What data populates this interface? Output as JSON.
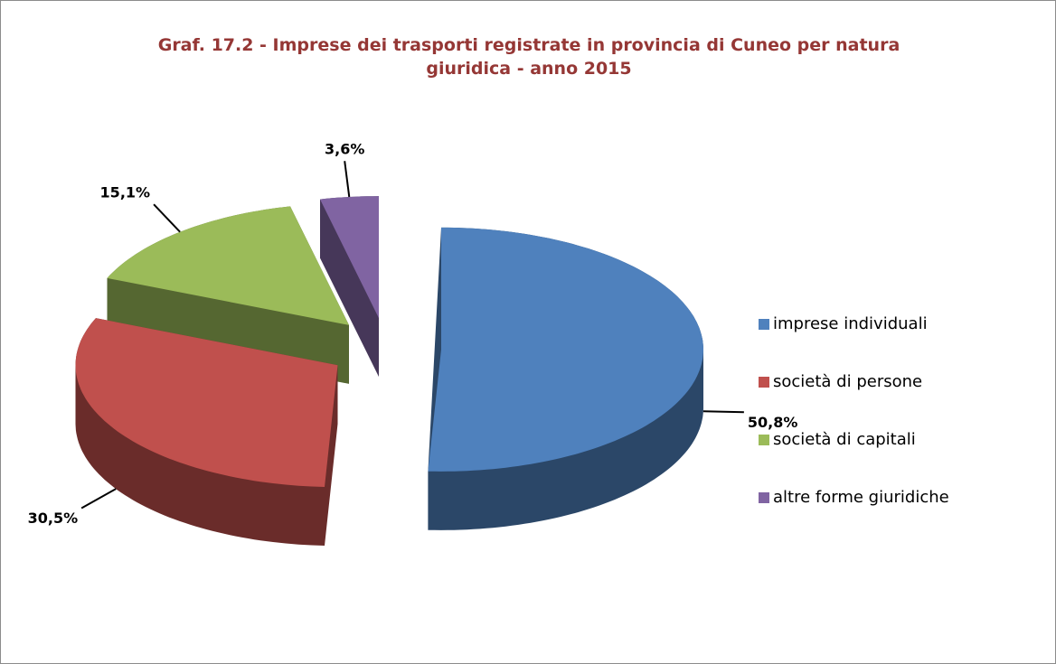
{
  "chart_data": {
    "type": "pie",
    "title": "Graf. 17.2 - Imprese dei trasporti registrate in provincia di Cuneo per natura giuridica - anno 2015",
    "categories": [
      "imprese individuali",
      "società di persone",
      "società di capitali",
      "altre forme giuridiche"
    ],
    "values": [
      50.8,
      30.5,
      15.1,
      3.6
    ],
    "value_labels": [
      "50,8%",
      "30,5%",
      "15,1%",
      "3,6%"
    ],
    "colors": [
      "#4f81bd",
      "#c0504d",
      "#9bbb59",
      "#8064a2"
    ],
    "legend": "right"
  }
}
